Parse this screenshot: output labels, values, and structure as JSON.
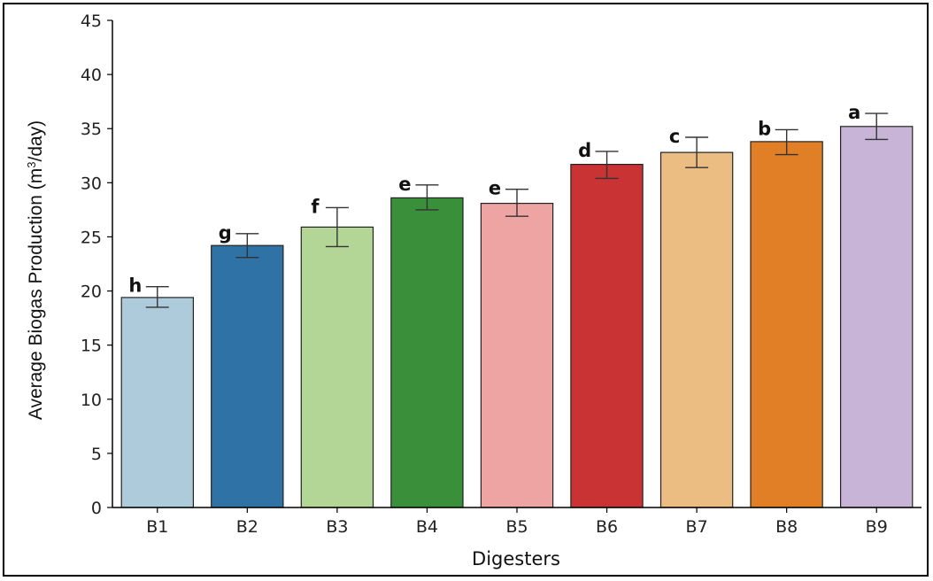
{
  "chart_data": {
    "type": "bar",
    "title": "",
    "xlabel": "Digesters",
    "ylabel_main": "Average Biogas Production (m",
    "ylabel_sup": "3",
    "ylabel_tail": "/day)",
    "categories": [
      "B1",
      "B2",
      "B3",
      "B4",
      "B5",
      "B6",
      "B7",
      "B8",
      "B9"
    ],
    "values": [
      19.4,
      24.2,
      25.9,
      28.6,
      28.1,
      31.7,
      32.8,
      33.8,
      35.2
    ],
    "error_low": [
      18.5,
      23.1,
      24.1,
      27.5,
      26.9,
      30.4,
      31.4,
      32.6,
      34.0
    ],
    "error_high": [
      20.4,
      25.3,
      27.7,
      29.8,
      29.4,
      32.9,
      34.2,
      34.9,
      36.4
    ],
    "significance_letters": [
      "h",
      "g",
      "f",
      "e",
      "e",
      "d",
      "c",
      "b",
      "a"
    ],
    "colors": [
      "#aecbdc",
      "#2f72a6",
      "#b3d596",
      "#3a8f3b",
      "#eea4a3",
      "#c93334",
      "#ebbd82",
      "#e07f25",
      "#c7b4d6"
    ],
    "ylim": [
      0,
      45
    ],
    "yticks": [
      0,
      5,
      10,
      15,
      20,
      25,
      30,
      35,
      40,
      45
    ],
    "grid": false,
    "legend": "none"
  }
}
